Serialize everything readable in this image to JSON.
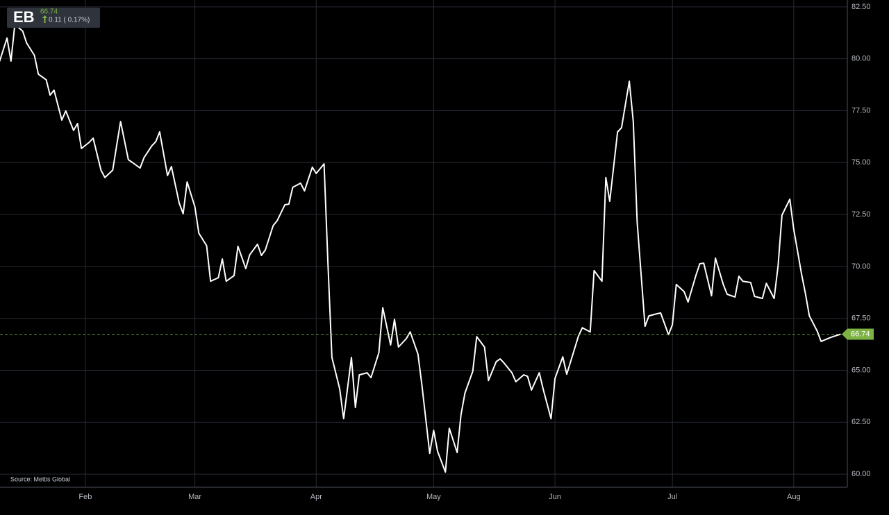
{
  "chart_data": {
    "type": "line",
    "ticker": "EB",
    "last_price": 66.74,
    "change_label": "0.11 ( 0.17%)",
    "source": "Source: Mettis Global",
    "color": "#ffffff",
    "accent_color": "#7cb342",
    "grid": true,
    "xlim": [
      10.2,
      226.7
    ],
    "ylim": [
      59.37,
      82.83
    ],
    "xticks": [
      {
        "value": 32,
        "label": "Feb"
      },
      {
        "value": 60,
        "label": "Mar"
      },
      {
        "value": 91,
        "label": "Apr"
      },
      {
        "value": 121,
        "label": "May"
      },
      {
        "value": 152,
        "label": "Jun"
      },
      {
        "value": 182,
        "label": "Jul"
      },
      {
        "value": 213,
        "label": "Aug"
      }
    ],
    "yticks": [
      {
        "value": 60,
        "label": "60.00"
      },
      {
        "value": 62.5,
        "label": "62.50"
      },
      {
        "value": 65,
        "label": "65.00"
      },
      {
        "value": 67.5,
        "label": "67.50"
      },
      {
        "value": 70,
        "label": "70.00"
      },
      {
        "value": 72.5,
        "label": "72.50"
      },
      {
        "value": 75,
        "label": "75.00"
      },
      {
        "value": 77.5,
        "label": "77.50"
      },
      {
        "value": 80,
        "label": "80.00"
      },
      {
        "value": 82.5,
        "label": "82.50"
      }
    ],
    "x": [
      10,
      12,
      13,
      14,
      16,
      17,
      19,
      20,
      22,
      23,
      24,
      26,
      27,
      29,
      30,
      31,
      33,
      34,
      36,
      37,
      39,
      40,
      41,
      43,
      44,
      46,
      47,
      49,
      50,
      51,
      53,
      54,
      56,
      57,
      58,
      60,
      61,
      63,
      64,
      66,
      67,
      68,
      70,
      71,
      73,
      74,
      76,
      77,
      78,
      80,
      81,
      83,
      84,
      85,
      87,
      88,
      90,
      91,
      93,
      94,
      95,
      97,
      98,
      100,
      101,
      102,
      104,
      105,
      107,
      108,
      110,
      111,
      112,
      114,
      115,
      117,
      118,
      120,
      121,
      122,
      124,
      125,
      127,
      128,
      129,
      131,
      132,
      134,
      135,
      137,
      138,
      139,
      141,
      142,
      144,
      145,
      146,
      148,
      149,
      151,
      152,
      154,
      155,
      156,
      158,
      159,
      161,
      162,
      164,
      165,
      166,
      168,
      169,
      171,
      172,
      173,
      175,
      176,
      178,
      179,
      181,
      182,
      183,
      185,
      186,
      188,
      189,
      190,
      192,
      193,
      195,
      196,
      198,
      199,
      200,
      202,
      203,
      205,
      206,
      208,
      209,
      210,
      212,
      213,
      215,
      216,
      217,
      219,
      220,
      222,
      223,
      225
    ],
    "values": [
      79.83,
      81.0,
      79.89,
      81.66,
      81.33,
      80.76,
      80.16,
      79.26,
      78.99,
      78.25,
      78.49,
      77.05,
      77.49,
      76.55,
      76.88,
      75.68,
      75.98,
      76.18,
      74.64,
      74.28,
      74.64,
      75.81,
      76.98,
      75.14,
      75.01,
      74.74,
      75.24,
      75.81,
      76.01,
      76.48,
      74.38,
      74.81,
      73.04,
      72.54,
      74.07,
      72.87,
      71.6,
      71.0,
      69.29,
      69.46,
      70.36,
      69.29,
      69.56,
      70.97,
      69.9,
      70.56,
      71.07,
      70.53,
      70.8,
      71.97,
      72.2,
      72.97,
      73.0,
      73.81,
      74.01,
      73.64,
      74.78,
      74.48,
      74.94,
      70.13,
      65.62,
      64.11,
      62.67,
      65.62,
      63.21,
      64.78,
      64.88,
      64.65,
      65.85,
      68.02,
      66.22,
      67.45,
      66.12,
      66.52,
      66.85,
      65.78,
      64.28,
      61.0,
      62.11,
      61.1,
      60.1,
      62.21,
      61.04,
      62.87,
      63.91,
      64.95,
      66.62,
      66.12,
      64.51,
      65.42,
      65.55,
      65.35,
      64.88,
      64.45,
      64.78,
      64.71,
      64.05,
      64.88,
      64.08,
      62.67,
      64.61,
      65.65,
      64.81,
      65.42,
      66.65,
      67.05,
      66.85,
      69.8,
      69.29,
      74.28,
      73.14,
      76.48,
      76.68,
      78.92,
      76.98,
      72.14,
      67.12,
      67.62,
      67.72,
      67.76,
      66.72,
      67.19,
      69.13,
      68.79,
      68.29,
      69.56,
      70.13,
      70.16,
      68.59,
      70.4,
      69.13,
      68.66,
      68.53,
      69.53,
      69.29,
      69.23,
      68.56,
      68.46,
      69.19,
      68.46,
      70.03,
      72.47,
      73.24,
      71.8,
      69.63,
      68.69,
      67.62,
      66.89,
      66.39,
      66.55,
      66.62,
      66.74
    ]
  }
}
